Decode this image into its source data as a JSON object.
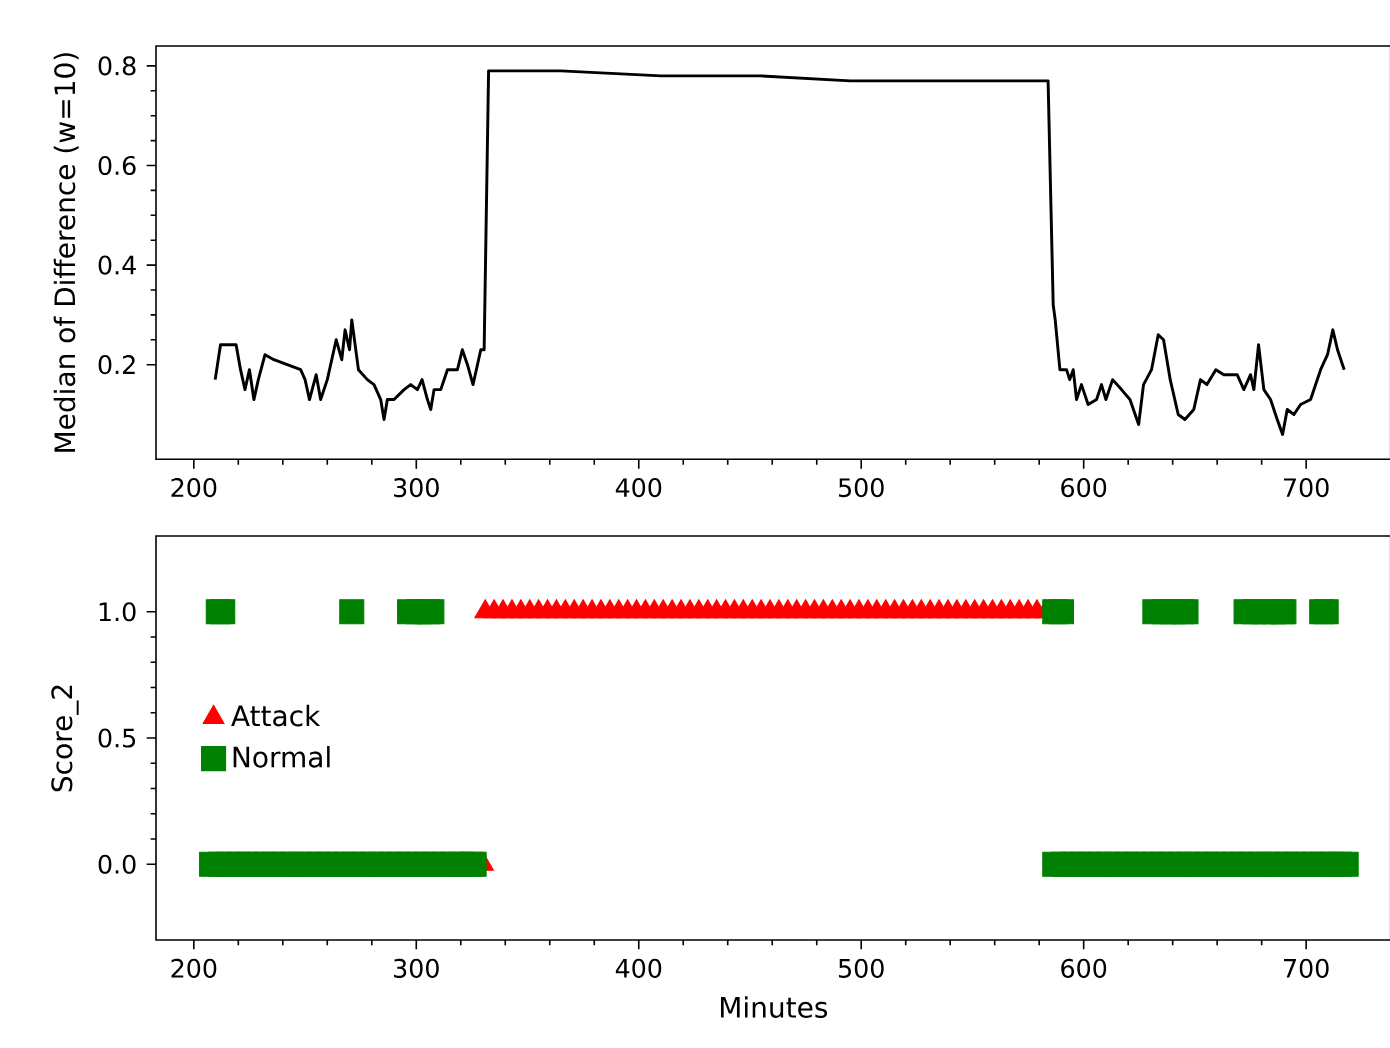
{
  "chart_data": [
    {
      "type": "line",
      "ylabel": "Median of Difference (w=10)",
      "color": "#000000",
      "x": [
        209.6,
        212,
        215,
        219,
        221,
        223,
        225,
        227,
        229,
        232,
        236,
        242,
        248,
        250,
        252,
        255,
        257,
        260,
        262,
        264,
        266.5,
        268,
        270,
        271,
        272.5,
        274,
        278,
        281,
        284,
        285.5,
        287,
        290,
        294.5,
        297.5,
        300.5,
        302.6,
        305,
        306.5,
        308,
        311,
        314,
        318.5,
        320.7,
        323,
        325.5,
        327.5,
        329,
        330.5,
        332.5,
        365,
        410,
        455,
        495,
        531,
        561,
        584,
        586.3,
        587.2,
        589.3,
        592.3,
        593.7,
        595.3,
        596.8,
        599,
        602,
        605.8,
        608,
        610,
        613,
        617,
        620.8,
        624.7,
        626.9,
        630.5,
        633.5,
        635.9,
        638.9,
        642.5,
        645.5,
        649.5,
        652.5,
        655.4,
        659.4,
        663,
        669,
        672,
        675,
        676.5,
        678.6,
        681,
        684,
        687,
        689.4,
        691.5,
        694.5,
        697.5,
        702,
        706.5,
        709.6,
        712,
        714.1,
        717.1
      ],
      "values": [
        0.17,
        0.24,
        0.24,
        0.24,
        0.19,
        0.15,
        0.19,
        0.13,
        0.17,
        0.22,
        0.21,
        0.2,
        0.19,
        0.17,
        0.13,
        0.18,
        0.13,
        0.17,
        0.21,
        0.25,
        0.21,
        0.27,
        0.23,
        0.29,
        0.24,
        0.19,
        0.17,
        0.16,
        0.13,
        0.09,
        0.13,
        0.13,
        0.15,
        0.16,
        0.15,
        0.17,
        0.13,
        0.11,
        0.15,
        0.15,
        0.19,
        0.19,
        0.23,
        0.2,
        0.16,
        0.2,
        0.23,
        0.23,
        0.79,
        0.79,
        0.78,
        0.78,
        0.77,
        0.77,
        0.77,
        0.77,
        0.32,
        0.29,
        0.19,
        0.19,
        0.17,
        0.19,
        0.13,
        0.16,
        0.12,
        0.13,
        0.16,
        0.13,
        0.17,
        0.15,
        0.13,
        0.08,
        0.16,
        0.19,
        0.26,
        0.25,
        0.17,
        0.1,
        0.09,
        0.11,
        0.17,
        0.16,
        0.19,
        0.18,
        0.18,
        0.15,
        0.18,
        0.15,
        0.24,
        0.15,
        0.13,
        0.09,
        0.06,
        0.11,
        0.1,
        0.12,
        0.13,
        0.19,
        0.22,
        0.27,
        0.23,
        0.19
      ],
      "xlim": [
        183,
        738
      ],
      "ylim": [
        0.01,
        0.84
      ],
      "xticks": [
        200,
        300,
        400,
        500,
        600,
        700
      ],
      "yticks": [
        0.2,
        0.4,
        0.6,
        0.8
      ]
    },
    {
      "type": "scatter",
      "xlabel": "Minutes",
      "ylabel": "Score_2",
      "legend": "left",
      "series": [
        {
          "name": "Attack",
          "color": "#ff0000",
          "marker": "triangle",
          "x": [
            330,
            331,
            335,
            339,
            343,
            347,
            351,
            355,
            359,
            363,
            367,
            371,
            375,
            379,
            383,
            387,
            391,
            395,
            399,
            403,
            407,
            411,
            415,
            419,
            423,
            427,
            431,
            435,
            439,
            443,
            447,
            451,
            455,
            459,
            463,
            467,
            471,
            475,
            479,
            483,
            487,
            491,
            495,
            499,
            503,
            507,
            511,
            515,
            519,
            523,
            527,
            531,
            535,
            539,
            543,
            547,
            551,
            555,
            559,
            563,
            567,
            571,
            575,
            579,
            583
          ],
          "values": [
            0,
            1,
            1,
            1,
            1,
            1,
            1,
            1,
            1,
            1,
            1,
            1,
            1,
            1,
            1,
            1,
            1,
            1,
            1,
            1,
            1,
            1,
            1,
            1,
            1,
            1,
            1,
            1,
            1,
            1,
            1,
            1,
            1,
            1,
            1,
            1,
            1,
            1,
            1,
            1,
            1,
            1,
            1,
            1,
            1,
            1,
            1,
            1,
            1,
            1,
            1,
            1,
            1,
            1,
            1,
            1,
            1,
            1,
            1,
            1,
            1,
            1,
            1,
            1,
            1
          ]
        },
        {
          "name": "Normal",
          "color": "#008000",
          "marker": "square",
          "x": [
            211,
            213,
            271,
            297,
            301,
            305,
            307,
            587,
            590,
            632,
            636,
            640,
            644,
            646,
            673,
            677,
            681,
            685,
            689,
            690,
            707,
            709,
            208,
            212,
            216,
            220,
            224,
            228,
            232,
            236,
            240,
            244,
            248,
            252,
            256,
            260,
            264,
            268,
            272,
            276,
            280,
            284,
            288,
            292,
            296,
            300,
            304,
            308,
            312,
            316,
            320,
            324,
            326,
            587,
            591,
            595,
            599,
            603,
            607,
            611,
            615,
            619,
            623,
            627,
            631,
            635,
            639,
            643,
            647,
            651,
            655,
            659,
            663,
            667,
            671,
            675,
            679,
            683,
            687,
            691,
            695,
            699,
            703,
            707,
            711,
            715,
            718
          ],
          "values": [
            1,
            1,
            1,
            1,
            1,
            1,
            1,
            1,
            1,
            1,
            1,
            1,
            1,
            1,
            1,
            1,
            1,
            1,
            1,
            1,
            1,
            1,
            0,
            0,
            0,
            0,
            0,
            0,
            0,
            0,
            0,
            0,
            0,
            0,
            0,
            0,
            0,
            0,
            0,
            0,
            0,
            0,
            0,
            0,
            0,
            0,
            0,
            0,
            0,
            0,
            0,
            0,
            0,
            0,
            0,
            0,
            0,
            0,
            0,
            0,
            0,
            0,
            0,
            0,
            0,
            0,
            0,
            0,
            0,
            0,
            0,
            0,
            0,
            0,
            0,
            0,
            0,
            0,
            0,
            0,
            0,
            0,
            0,
            0,
            0,
            0,
            0
          ]
        }
      ],
      "xlim": [
        183,
        738
      ],
      "ylim": [
        -0.3,
        1.3
      ],
      "xticks": [
        200,
        300,
        400,
        500,
        600,
        700
      ],
      "yticks": [
        {
          "value": 0,
          "label": "0.0"
        },
        {
          "value": 0.5,
          "label": "0.5"
        },
        {
          "value": 1,
          "label": "1.0"
        }
      ]
    }
  ]
}
